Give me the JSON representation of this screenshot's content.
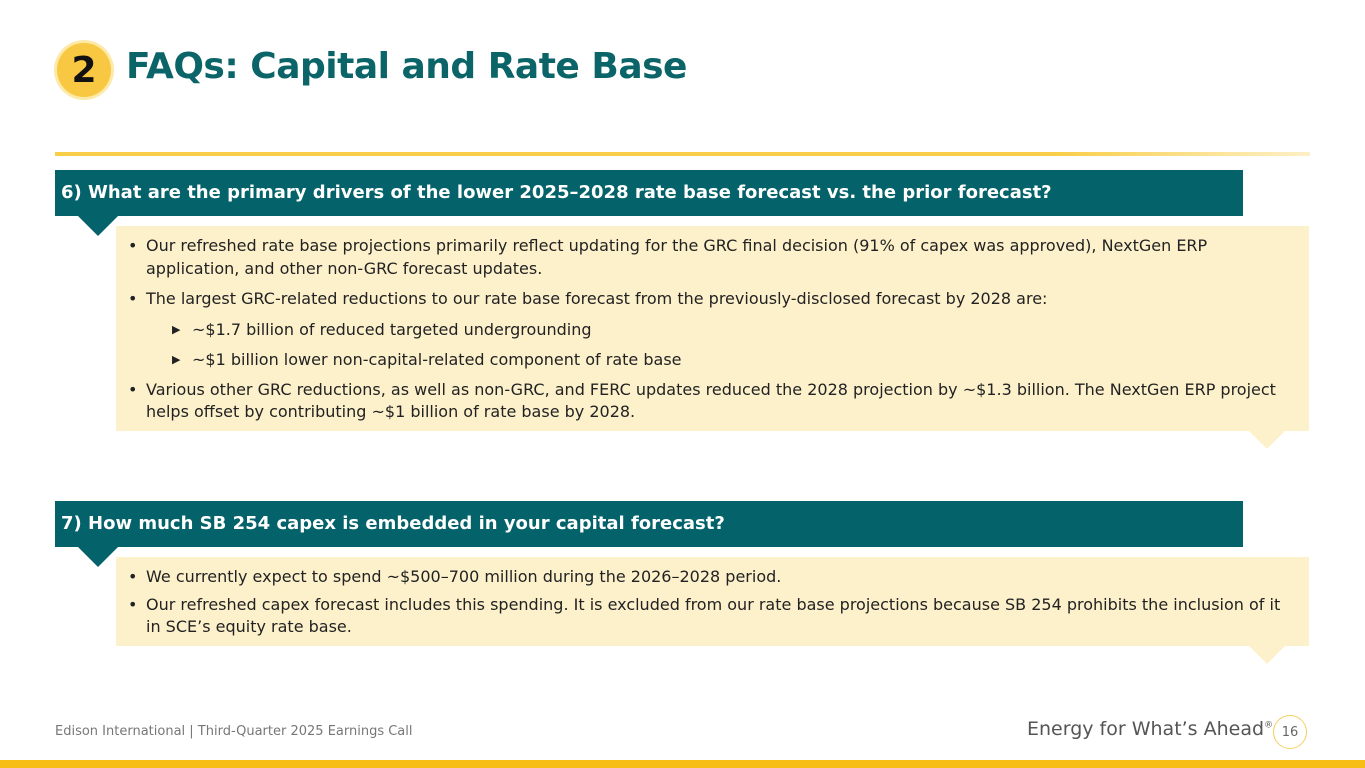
{
  "header": {
    "section_number": "2",
    "title": "FAQs: Capital and Rate Base"
  },
  "faqs": [
    {
      "question": "6) What are the primary drivers of the lower 2025–2028 rate base forecast vs. the prior forecast?",
      "bullets": [
        "Our refreshed rate base projections primarily reflect updating for the GRC final decision (91% of capex was approved), NextGen ERP application, and other non-GRC forecast updates.",
        "The largest GRC-related reductions to our rate base forecast from the previously-disclosed forecast by 2028 are:"
      ],
      "sub_bullets": [
        "~$1.7 billion of reduced targeted undergrounding",
        "~$1 billion lower non-capital-related component of rate base"
      ],
      "final_bullet": "Various other GRC reductions, as well as non-GRC, and FERC updates reduced the 2028 projection by ~$1.3 billion. The NextGen ERP project helps offset by contributing ~$1 billion of rate base by 2028."
    },
    {
      "question": "7) How much SB 254 capex is embedded in your capital forecast?",
      "bullets": [
        "We currently expect to spend ~$500–700 million during the 2026–2028 period.",
        "Our refreshed capex forecast includes this spending. It is excluded from our rate base projections because SB 254 prohibits the inclusion of it in SCE’s equity rate base."
      ]
    }
  ],
  "footer": {
    "company": "Edison International |  Third-Quarter 2025 Earnings Call",
    "tagline": "Energy for What’s Ahead",
    "registered": "®",
    "page": "16"
  },
  "colors": {
    "teal": "#03626a",
    "yellow": "#f9c842",
    "cream": "#fdf1cc"
  }
}
